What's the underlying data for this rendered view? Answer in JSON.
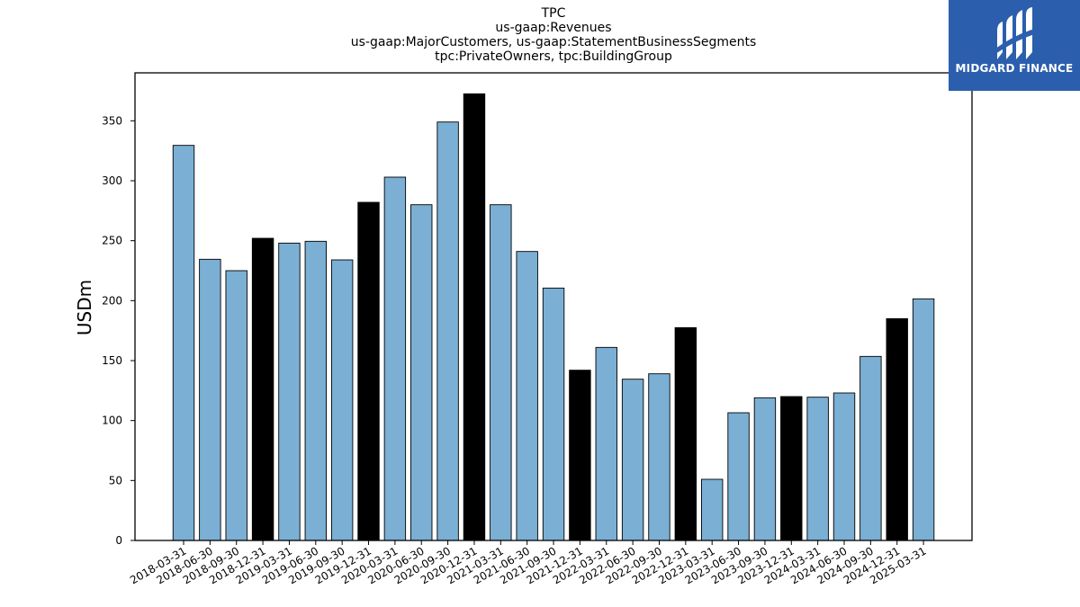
{
  "header": {
    "title_lines": [
      "TPC",
      "us-gaap:Revenues",
      "us-gaap:MajorCustomers, us-gaap:StatementBusinessSegments",
      "tpc:PrivateOwners, tpc:BuildingGroup"
    ]
  },
  "logo": {
    "text": "MIDGARD FINANCE",
    "background": "#2b5fae",
    "icon": "midgard-logo-icon"
  },
  "colors": {
    "quarter_bar": "#7bafd4",
    "year_end_bar": "#000000",
    "axis": "#000000",
    "bar_edge": "#000000"
  },
  "chart_data": {
    "type": "bar",
    "title": "TPC\nus-gaap:Revenues\nus-gaap:MajorCustomers, us-gaap:StatementBusinessSegments\ntpc:PrivateOwners, tpc:BuildingGroup",
    "xlabel": "",
    "ylabel": "USDm",
    "ylim": [
      0,
      390
    ],
    "yticks": [
      0,
      50,
      100,
      150,
      200,
      250,
      300,
      350
    ],
    "grid": false,
    "categories": [
      "2018-03-31",
      "2018-06-30",
      "2018-09-30",
      "2018-12-31",
      "2019-03-31",
      "2019-06-30",
      "2019-09-30",
      "2019-12-31",
      "2020-03-31",
      "2020-06-30",
      "2020-09-30",
      "2020-12-31",
      "2021-03-31",
      "2021-06-30",
      "2021-09-30",
      "2021-12-31",
      "2022-03-31",
      "2022-06-30",
      "2022-09-30",
      "2022-12-31",
      "2023-03-31",
      "2023-06-30",
      "2023-09-30",
      "2023-12-31",
      "2024-03-31",
      "2024-06-30",
      "2024-09-30",
      "2024-12-31",
      "2025-03-31"
    ],
    "values": [
      329.5,
      234.5,
      225,
      252,
      248,
      249.5,
      234,
      282,
      303,
      280,
      349,
      372.5,
      280,
      241,
      210.5,
      142,
      161,
      134.5,
      139,
      177.5,
      51,
      106.5,
      119,
      120,
      119.5,
      123,
      153.5,
      185,
      201.5
    ],
    "year_end": [
      false,
      false,
      false,
      true,
      false,
      false,
      false,
      true,
      false,
      false,
      false,
      true,
      false,
      false,
      false,
      true,
      false,
      false,
      false,
      true,
      false,
      false,
      false,
      true,
      false,
      false,
      false,
      true,
      false
    ]
  }
}
